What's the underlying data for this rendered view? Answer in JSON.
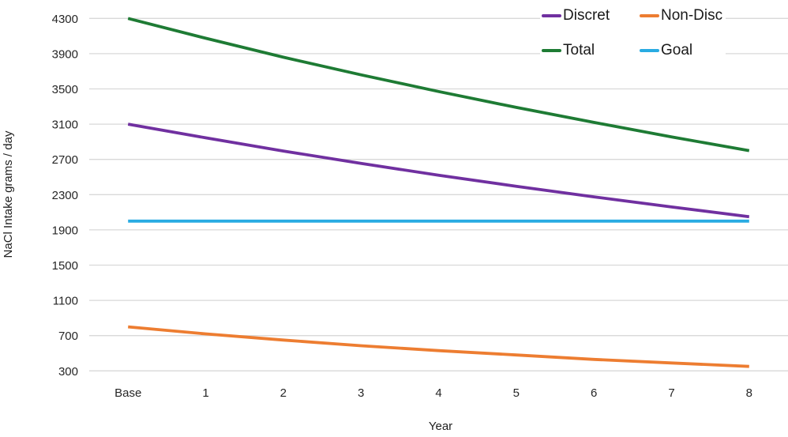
{
  "chart_data": {
    "type": "line",
    "title": "",
    "xlabel": "Year",
    "ylabel": "NaCl Intake grams / day",
    "categories": [
      "Base",
      "1",
      "2",
      "3",
      "4",
      "5",
      "6",
      "7",
      "8"
    ],
    "y_ticks": [
      300,
      700,
      1100,
      1500,
      1900,
      2300,
      2700,
      3100,
      3500,
      3900,
      4300
    ],
    "ylim": [
      300,
      4300
    ],
    "grid": "horizontal",
    "legend_position": "top-right",
    "series": [
      {
        "name": "Discret",
        "color": "#7030A0",
        "values": [
          3100,
          2945,
          2795,
          2655,
          2520,
          2395,
          2275,
          2160,
          2050
        ]
      },
      {
        "name": "Non-Disc",
        "color": "#ED7D31",
        "values": [
          800,
          720,
          650,
          585,
          530,
          480,
          430,
          390,
          350
        ]
      },
      {
        "name": "Total",
        "color": "#1E7B34",
        "values": [
          4300,
          4075,
          3860,
          3660,
          3470,
          3290,
          3120,
          2955,
          2800
        ]
      },
      {
        "name": "Goal",
        "color": "#29ABE2",
        "values": [
          2000,
          2000,
          2000,
          2000,
          2000,
          2000,
          2000,
          2000,
          2000
        ]
      }
    ]
  },
  "colors": {
    "gridline": "#D9D9D9",
    "text": "#262626",
    "background": "#FFFFFF"
  }
}
